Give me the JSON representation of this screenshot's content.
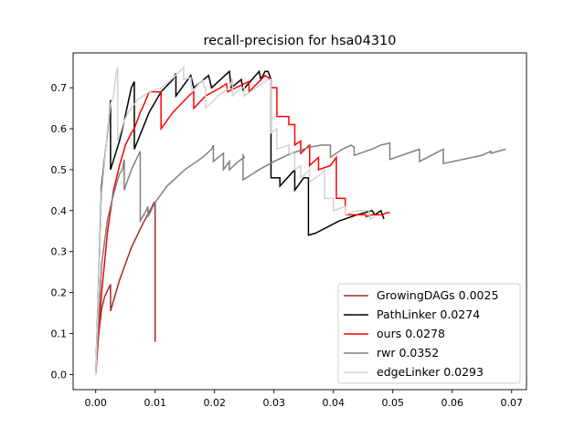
{
  "chart_data": {
    "type": "line",
    "title": "recall-precision for hsa04310",
    "xlabel": "",
    "ylabel": "",
    "xlim": [
      -0.0038,
      0.0725
    ],
    "ylim": [
      -0.037,
      0.785
    ],
    "xticks": [
      0.0,
      0.01,
      0.02,
      0.03,
      0.04,
      0.05,
      0.06,
      0.07
    ],
    "xtick_labels": [
      "0.00",
      "0.01",
      "0.02",
      "0.03",
      "0.04",
      "0.05",
      "0.06",
      "0.07"
    ],
    "yticks": [
      0.0,
      0.1,
      0.2,
      0.3,
      0.4,
      0.5,
      0.6,
      0.7
    ],
    "ytick_labels": [
      "0.0",
      "0.1",
      "0.2",
      "0.3",
      "0.4",
      "0.5",
      "0.6",
      "0.7"
    ],
    "grid": false,
    "legend_position": "lower-right",
    "series": [
      {
        "name": "GrowingDAGs 0.0025",
        "color": "#a52a2a",
        "points": [
          [
            0.0,
            0.0
          ],
          [
            0.0005,
            0.1
          ],
          [
            0.001,
            0.16
          ],
          [
            0.0015,
            0.19
          ],
          [
            0.0025,
            0.22
          ],
          [
            0.0025,
            0.155
          ],
          [
            0.004,
            0.23
          ],
          [
            0.006,
            0.31
          ],
          [
            0.008,
            0.37
          ],
          [
            0.0095,
            0.41
          ],
          [
            0.0098,
            0.42
          ],
          [
            0.01,
            0.42
          ],
          [
            0.01,
            0.08
          ]
        ]
      },
      {
        "name": "PathLinker 0.0274",
        "color": "#000000",
        "points": [
          [
            0.0,
            0.0
          ],
          [
            0.001,
            0.46
          ],
          [
            0.0022,
            0.62
          ],
          [
            0.0025,
            0.67
          ],
          [
            0.0025,
            0.5
          ],
          [
            0.004,
            0.57
          ],
          [
            0.0045,
            0.6
          ],
          [
            0.006,
            0.7
          ],
          [
            0.0065,
            0.715
          ],
          [
            0.0065,
            0.55
          ],
          [
            0.009,
            0.64
          ],
          [
            0.011,
            0.69
          ],
          [
            0.013,
            0.72
          ],
          [
            0.0135,
            0.735
          ],
          [
            0.0135,
            0.68
          ],
          [
            0.016,
            0.73
          ],
          [
            0.0165,
            0.7
          ],
          [
            0.019,
            0.73
          ],
          [
            0.0195,
            0.7
          ],
          [
            0.0225,
            0.74
          ],
          [
            0.0228,
            0.7
          ],
          [
            0.0245,
            0.72
          ],
          [
            0.0248,
            0.695
          ],
          [
            0.0275,
            0.74
          ],
          [
            0.0278,
            0.72
          ],
          [
            0.0285,
            0.74
          ],
          [
            0.029,
            0.74
          ],
          [
            0.0295,
            0.72
          ],
          [
            0.0295,
            0.48
          ],
          [
            0.031,
            0.48
          ],
          [
            0.031,
            0.46
          ],
          [
            0.0335,
            0.5
          ],
          [
            0.0335,
            0.45
          ],
          [
            0.035,
            0.48
          ],
          [
            0.0358,
            0.48
          ],
          [
            0.0358,
            0.34
          ],
          [
            0.037,
            0.345
          ],
          [
            0.041,
            0.375
          ],
          [
            0.044,
            0.39
          ],
          [
            0.0465,
            0.4
          ],
          [
            0.047,
            0.39
          ],
          [
            0.048,
            0.4
          ],
          [
            0.0485,
            0.38
          ]
        ]
      },
      {
        "name": "ours 0.0278",
        "color": "#ff0000",
        "points": [
          [
            0.0,
            0.0
          ],
          [
            0.001,
            0.2
          ],
          [
            0.002,
            0.35
          ],
          [
            0.003,
            0.45
          ],
          [
            0.004,
            0.51
          ],
          [
            0.005,
            0.56
          ],
          [
            0.006,
            0.59
          ],
          [
            0.0065,
            0.6
          ],
          [
            0.0075,
            0.64
          ],
          [
            0.008,
            0.655
          ],
          [
            0.009,
            0.69
          ],
          [
            0.011,
            0.69
          ],
          [
            0.011,
            0.6
          ],
          [
            0.013,
            0.64
          ],
          [
            0.015,
            0.67
          ],
          [
            0.016,
            0.685
          ],
          [
            0.0165,
            0.69
          ],
          [
            0.0165,
            0.65
          ],
          [
            0.0185,
            0.68
          ],
          [
            0.021,
            0.7
          ],
          [
            0.022,
            0.71
          ],
          [
            0.0222,
            0.69
          ],
          [
            0.025,
            0.71
          ],
          [
            0.0258,
            0.715
          ],
          [
            0.0258,
            0.69
          ],
          [
            0.0285,
            0.73
          ],
          [
            0.0295,
            0.72
          ],
          [
            0.0295,
            0.7
          ],
          [
            0.0305,
            0.7
          ],
          [
            0.0305,
            0.63
          ],
          [
            0.0325,
            0.63
          ],
          [
            0.0325,
            0.61
          ],
          [
            0.0335,
            0.61
          ],
          [
            0.0335,
            0.56
          ],
          [
            0.0345,
            0.57
          ],
          [
            0.0345,
            0.54
          ],
          [
            0.036,
            0.56
          ],
          [
            0.036,
            0.51
          ],
          [
            0.0375,
            0.53
          ],
          [
            0.0375,
            0.5
          ],
          [
            0.0395,
            0.51
          ],
          [
            0.0405,
            0.53
          ],
          [
            0.0405,
            0.43
          ],
          [
            0.042,
            0.43
          ],
          [
            0.042,
            0.39
          ],
          [
            0.0455,
            0.39
          ],
          [
            0.0455,
            0.385
          ],
          [
            0.0465,
            0.39
          ],
          [
            0.0482,
            0.39
          ],
          [
            0.049,
            0.395
          ],
          [
            0.0495,
            0.395
          ]
        ]
      },
      {
        "name": "rwr 0.0352",
        "color": "#808080",
        "points": [
          [
            0.0,
            0.0
          ],
          [
            0.001,
            0.27
          ],
          [
            0.002,
            0.38
          ],
          [
            0.003,
            0.44
          ],
          [
            0.004,
            0.49
          ],
          [
            0.0045,
            0.5
          ],
          [
            0.0048,
            0.525
          ],
          [
            0.0048,
            0.45
          ],
          [
            0.006,
            0.5
          ],
          [
            0.007,
            0.53
          ],
          [
            0.0075,
            0.545
          ],
          [
            0.0075,
            0.375
          ],
          [
            0.0085,
            0.4
          ],
          [
            0.0088,
            0.41
          ],
          [
            0.0088,
            0.385
          ],
          [
            0.01,
            0.42
          ],
          [
            0.012,
            0.46
          ],
          [
            0.015,
            0.5
          ],
          [
            0.018,
            0.53
          ],
          [
            0.0195,
            0.55
          ],
          [
            0.0198,
            0.56
          ],
          [
            0.0198,
            0.52
          ],
          [
            0.0215,
            0.54
          ],
          [
            0.0215,
            0.5
          ],
          [
            0.022,
            0.51
          ],
          [
            0.0225,
            0.52
          ],
          [
            0.0225,
            0.5
          ],
          [
            0.024,
            0.52
          ],
          [
            0.025,
            0.53
          ],
          [
            0.0248,
            0.535
          ],
          [
            0.0248,
            0.475
          ],
          [
            0.0275,
            0.5
          ],
          [
            0.03,
            0.52
          ],
          [
            0.033,
            0.54
          ],
          [
            0.036,
            0.555
          ],
          [
            0.038,
            0.56
          ],
          [
            0.0395,
            0.56
          ],
          [
            0.0395,
            0.53
          ],
          [
            0.0415,
            0.55
          ],
          [
            0.043,
            0.56
          ],
          [
            0.0435,
            0.555
          ],
          [
            0.0435,
            0.535
          ],
          [
            0.0465,
            0.55
          ],
          [
            0.048,
            0.56
          ],
          [
            0.0495,
            0.565
          ],
          [
            0.0495,
            0.525
          ],
          [
            0.0545,
            0.55
          ],
          [
            0.0545,
            0.52
          ],
          [
            0.0585,
            0.55
          ],
          [
            0.0585,
            0.515
          ],
          [
            0.065,
            0.535
          ],
          [
            0.0665,
            0.545
          ],
          [
            0.0665,
            0.54
          ],
          [
            0.069,
            0.55
          ]
        ]
      },
      {
        "name": "edgeLinker 0.0293",
        "color": "#d3d3d3",
        "points": [
          [
            0.0,
            0.0
          ],
          [
            0.001,
            0.44
          ],
          [
            0.002,
            0.6
          ],
          [
            0.0025,
            0.66
          ],
          [
            0.003,
            0.68
          ],
          [
            0.0035,
            0.74
          ],
          [
            0.0037,
            0.75
          ],
          [
            0.0037,
            0.57
          ],
          [
            0.0048,
            0.62
          ],
          [
            0.0055,
            0.64
          ],
          [
            0.007,
            0.67
          ],
          [
            0.009,
            0.69
          ],
          [
            0.011,
            0.7
          ],
          [
            0.012,
            0.71
          ],
          [
            0.0145,
            0.745
          ],
          [
            0.0148,
            0.75
          ],
          [
            0.0148,
            0.72
          ],
          [
            0.016,
            0.725
          ],
          [
            0.0162,
            0.69
          ],
          [
            0.018,
            0.72
          ],
          [
            0.0183,
            0.7
          ],
          [
            0.0185,
            0.7
          ],
          [
            0.0185,
            0.65
          ],
          [
            0.021,
            0.685
          ],
          [
            0.0225,
            0.7
          ],
          [
            0.023,
            0.72
          ],
          [
            0.023,
            0.68
          ],
          [
            0.0245,
            0.7
          ],
          [
            0.025,
            0.7
          ],
          [
            0.025,
            0.68
          ],
          [
            0.027,
            0.7
          ],
          [
            0.029,
            0.72
          ],
          [
            0.0295,
            0.72
          ],
          [
            0.0295,
            0.59
          ],
          [
            0.0305,
            0.6
          ],
          [
            0.0305,
            0.55
          ],
          [
            0.0325,
            0.56
          ],
          [
            0.0325,
            0.54
          ],
          [
            0.0335,
            0.54
          ],
          [
            0.0335,
            0.5
          ],
          [
            0.0345,
            0.51
          ],
          [
            0.0345,
            0.48
          ],
          [
            0.036,
            0.5
          ],
          [
            0.036,
            0.47
          ],
          [
            0.038,
            0.49
          ],
          [
            0.0385,
            0.5
          ],
          [
            0.0385,
            0.43
          ],
          [
            0.04,
            0.43
          ],
          [
            0.04,
            0.4
          ],
          [
            0.042,
            0.41
          ],
          [
            0.042,
            0.39
          ],
          [
            0.044,
            0.4
          ],
          [
            0.046,
            0.4
          ],
          [
            0.0462,
            0.38
          ],
          [
            0.047,
            0.385
          ]
        ]
      }
    ]
  }
}
